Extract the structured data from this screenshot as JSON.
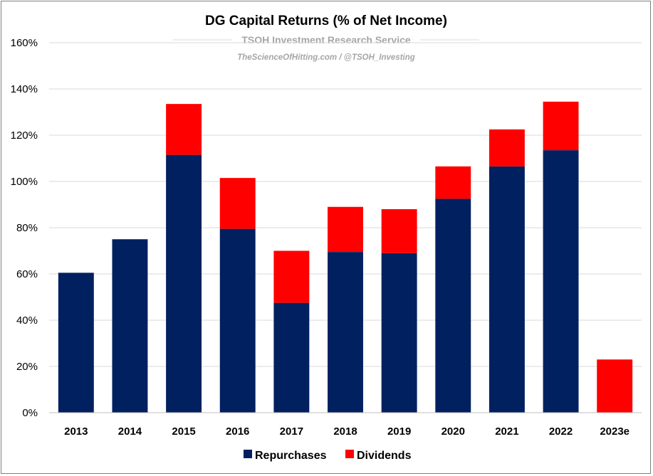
{
  "chart_data": {
    "type": "bar",
    "stacked": true,
    "title": "DG Capital Returns (% of Net Income)",
    "subtitle": "TSOH Investment Research Service",
    "subtitle2": "TheScienceOfHitting.com / @TSOH_Investing",
    "categories": [
      "2013",
      "2014",
      "2015",
      "2016",
      "2017",
      "2018",
      "2019",
      "2020",
      "2021",
      "2022",
      "2023e"
    ],
    "series": [
      {
        "name": "Repurchases",
        "color": "#002060",
        "values": [
          60.5,
          75,
          111.5,
          79.5,
          47.5,
          69.5,
          69,
          92.5,
          106.5,
          113.5,
          0
        ]
      },
      {
        "name": "Dividends",
        "color": "#ff0000",
        "values": [
          0,
          0,
          22,
          22,
          22.5,
          19.5,
          19,
          14,
          16,
          21,
          23
        ]
      }
    ],
    "ylim": [
      0,
      160
    ],
    "yticks": [
      "0%",
      "20%",
      "40%",
      "60%",
      "80%",
      "100%",
      "120%",
      "140%",
      "160%"
    ],
    "grid": true,
    "legend": "bottom"
  }
}
